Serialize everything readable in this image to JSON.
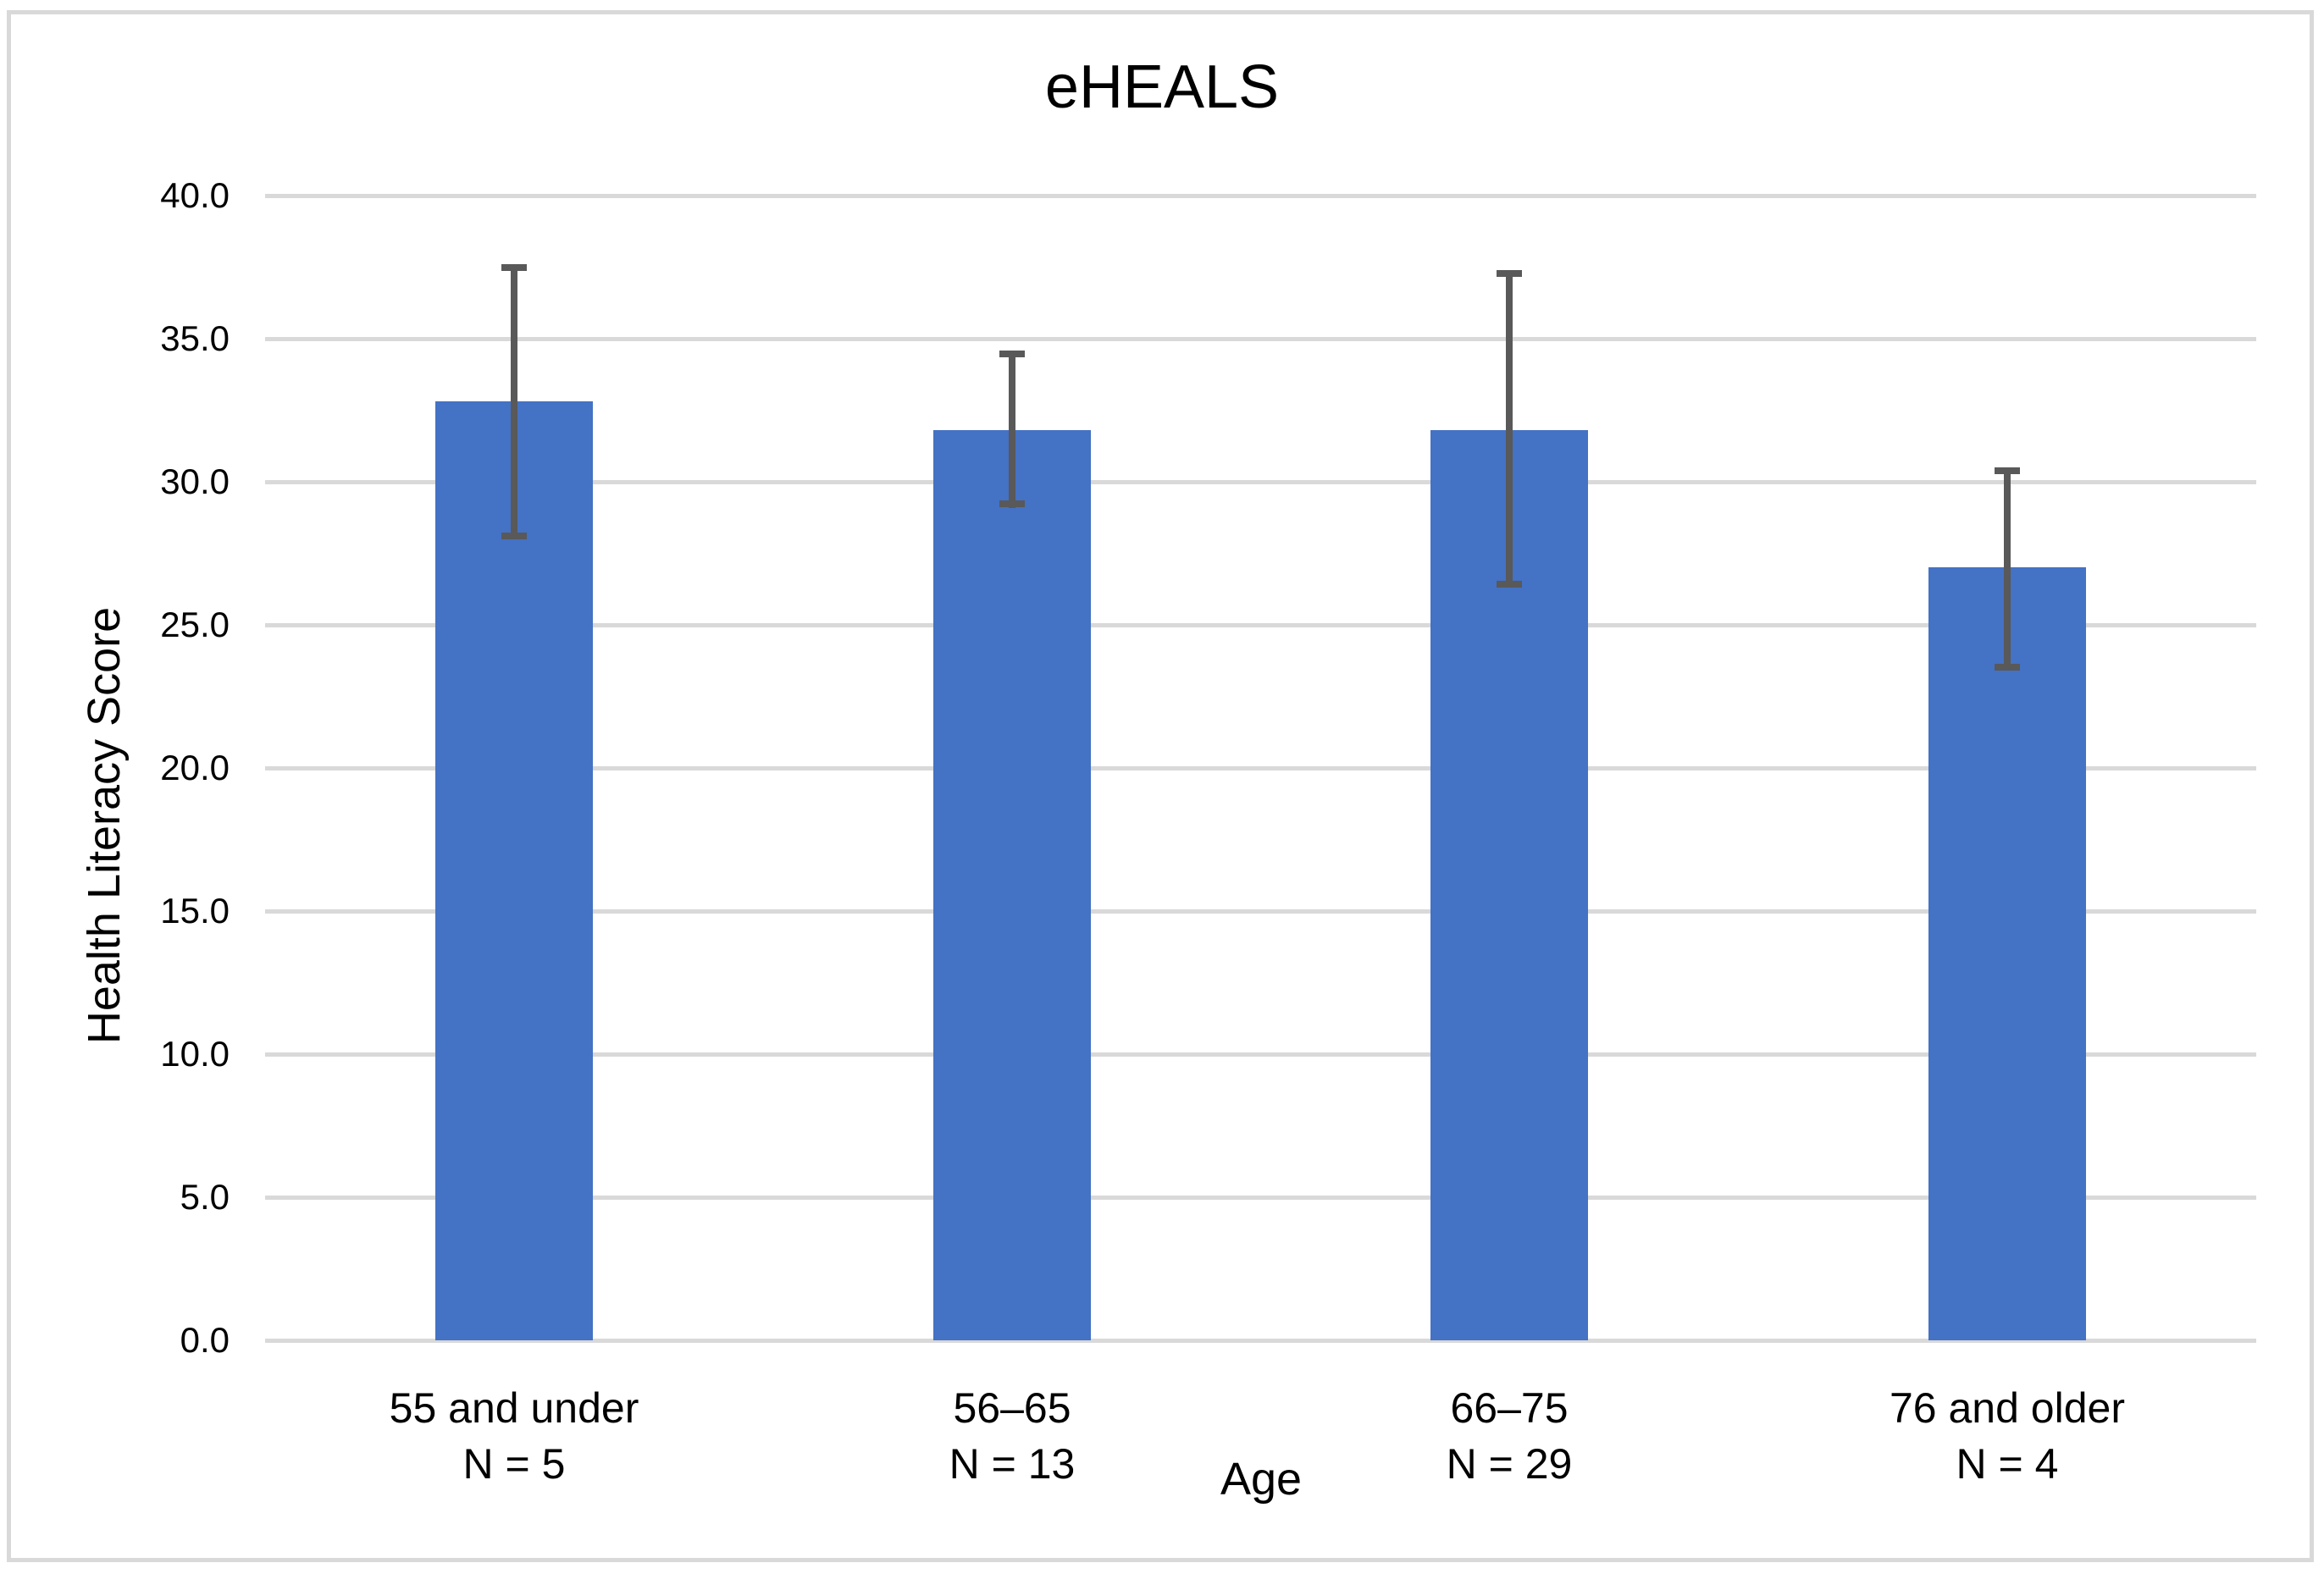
{
  "figure": {
    "title": "eHEALS",
    "x_axis_title": "Age",
    "y_axis_title": "Health Literacy Score"
  },
  "chart_data": {
    "type": "bar",
    "title": "eHEALS",
    "xlabel": "Age",
    "ylabel": "Health Literacy Score",
    "categories": [
      "55 and under",
      "56–65",
      "66–75",
      "76 and older"
    ],
    "sample_size_labels": [
      "N = 5",
      "N = 13",
      "N = 29",
      "N = 4"
    ],
    "values": [
      32.8,
      31.8,
      31.8,
      27.0
    ],
    "error_high": [
      37.6,
      34.6,
      37.4,
      30.5
    ],
    "error_low": [
      28.0,
      29.1,
      26.3,
      23.4
    ],
    "ylim": [
      0,
      40
    ],
    "ytick_step": 5,
    "ytick_labels": [
      "0.0",
      "5.0",
      "10.0",
      "15.0",
      "20.0",
      "25.0",
      "30.0",
      "35.0",
      "40.0"
    ],
    "grid": true,
    "legend": false,
    "colors": {
      "bar": "#4472C4",
      "error_bar": "#595959",
      "gridline": "#D9D9D9",
      "text": "#000000",
      "border": "#D9D9D9"
    }
  }
}
